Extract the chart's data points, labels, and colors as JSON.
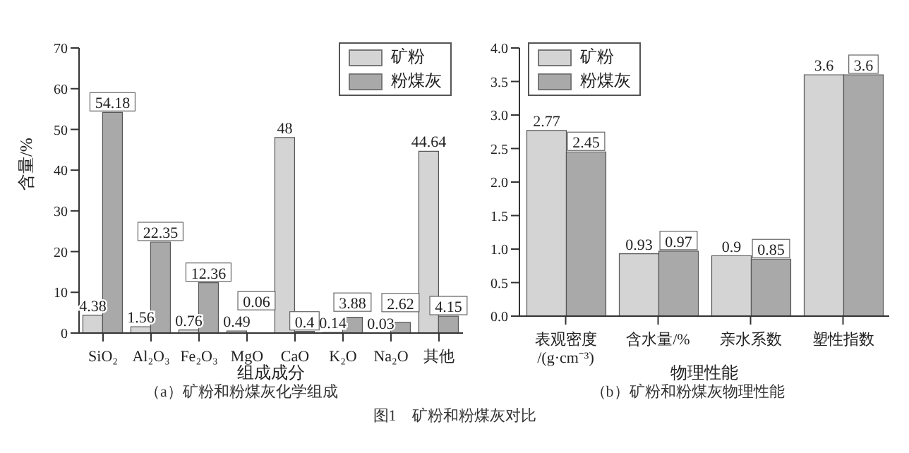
{
  "chart_data": [
    {
      "type": "bar",
      "title": "（a）矿粉和粉煤灰化学组成",
      "xlabel": "组成成分",
      "ylabel": "含量/%",
      "categories": [
        "SiO₂",
        "Al₂O₃",
        "Fe₂O₃",
        "MgO",
        "CaO",
        "K₂O",
        "Na₂O",
        "其他"
      ],
      "series": [
        {
          "name": "矿粉",
          "color": "#d4d4d4",
          "values": [
            4.38,
            1.56,
            0.76,
            0.49,
            48,
            0.14,
            0.03,
            44.64
          ]
        },
        {
          "name": "粉煤灰",
          "color": "#a9a9a9",
          "values": [
            54.18,
            22.35,
            12.36,
            0.06,
            0.4,
            3.88,
            2.62,
            4.15
          ]
        }
      ],
      "ylim": [
        0,
        70
      ],
      "yticks": [
        0,
        10,
        20,
        30,
        40,
        50,
        60,
        70
      ],
      "data_labels": true,
      "legend": "top right",
      "grid": false,
      "annotations": [
        "图1　矿粉和粉煤灰对比"
      ]
    },
    {
      "type": "bar",
      "title": "（b）矿粉和粉煤灰物理性能",
      "xlabel": "物理性能",
      "categories": [
        "表观密度\n/(g·cm⁻³)",
        "含水量/%",
        "亲水系数",
        "塑性指数"
      ],
      "series": [
        {
          "name": "矿粉",
          "color": "#d4d4d4",
          "values": [
            2.77,
            0.93,
            0.9,
            3.6
          ]
        },
        {
          "name": "粉煤灰",
          "color": "#a9a9a9",
          "values": [
            2.45,
            0.97,
            0.85,
            3.6
          ]
        }
      ],
      "ylim": [
        0,
        4
      ],
      "yticks": [
        {
          "value": 0,
          "label": "0.0"
        },
        {
          "value": 0.5,
          "label": "0.5"
        },
        {
          "value": 1,
          "label": "1.0"
        },
        {
          "value": 1.5,
          "label": "1.5"
        },
        {
          "value": 2,
          "label": "2.0"
        },
        {
          "value": 2.5,
          "label": "2.5"
        },
        {
          "value": 3,
          "label": "3.0"
        },
        {
          "value": 3.5,
          "label": "3.5"
        },
        {
          "value": 4,
          "label": "4.0"
        }
      ],
      "data_labels": true,
      "legend": "top left",
      "grid": false
    }
  ]
}
